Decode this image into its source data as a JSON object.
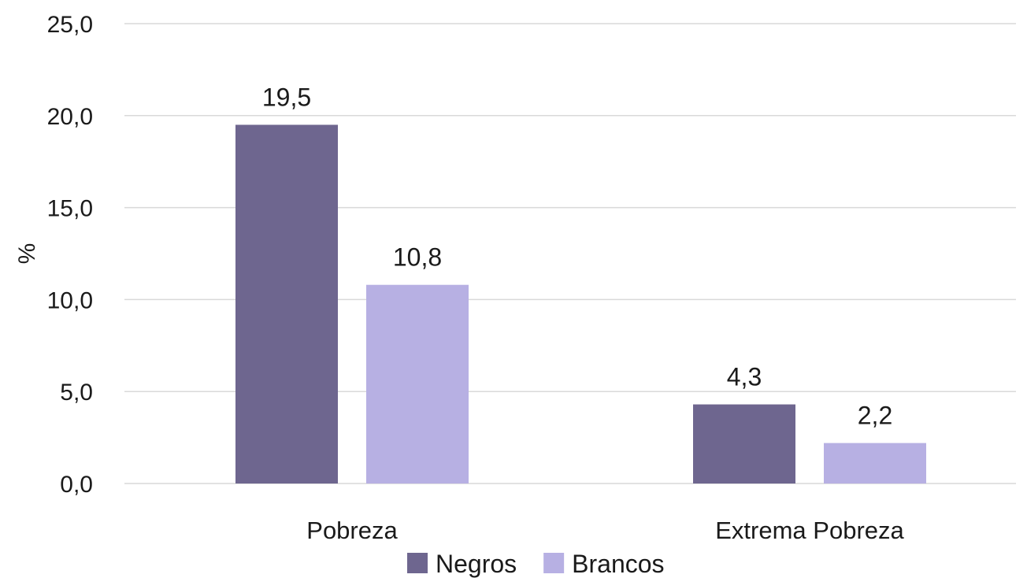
{
  "chart_data": {
    "type": "bar",
    "title": "",
    "xlabel": "",
    "ylabel": "%",
    "ylim": [
      0,
      25
    ],
    "yticks": [
      "0,0",
      "5,0",
      "10,0",
      "15,0",
      "20,0",
      "25,0"
    ],
    "ytick_values": [
      0,
      5,
      10,
      15,
      20,
      25
    ],
    "grid": true,
    "legend_position": "bottom",
    "categories": [
      "Pobreza",
      "Extrema Pobreza"
    ],
    "series": [
      {
        "name": "Negros",
        "color": "#6e668f",
        "values": [
          19.5,
          4.3
        ],
        "labels": [
          "19,5",
          "4,3"
        ]
      },
      {
        "name": "Brancos",
        "color": "#b7b0e3",
        "values": [
          10.8,
          2.2
        ],
        "labels": [
          "10,8",
          "2,2"
        ]
      }
    ]
  }
}
